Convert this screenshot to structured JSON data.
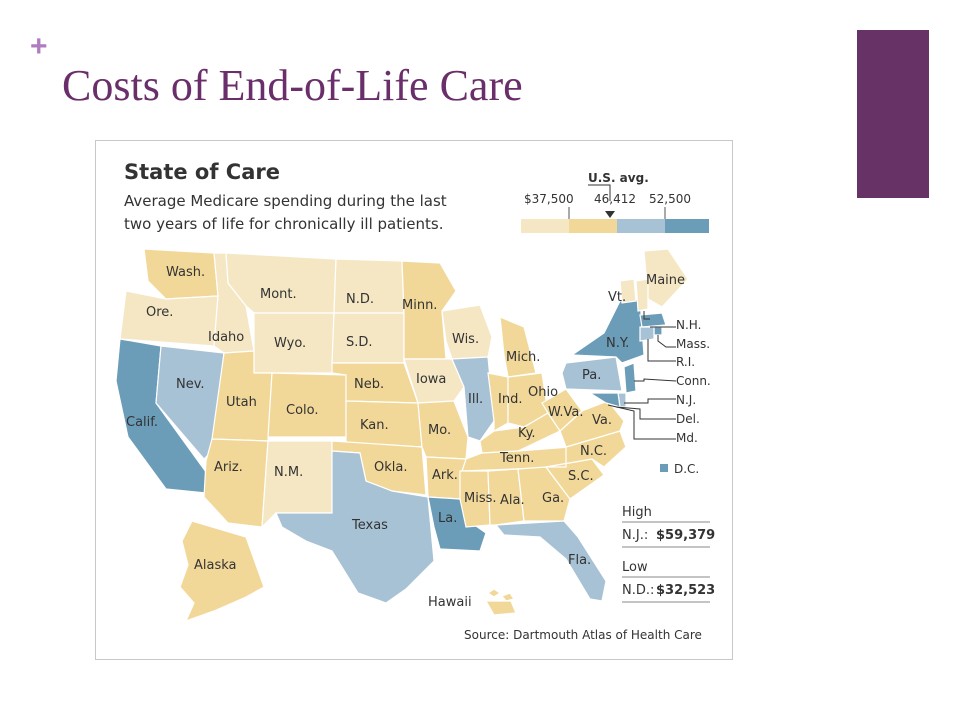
{
  "slide": {
    "plus": "+",
    "title": "Costs of End-of-Life Care"
  },
  "map": {
    "title": "State of Care",
    "subtitle_line1": "Average Medicare spending during the last",
    "subtitle_line2": "two years of life for chronically ill patients.",
    "legend": {
      "avg_label": "U.S. avg.",
      "ticks": [
        "$37,500",
        "46,412",
        "52,500"
      ],
      "colors": [
        "#f5e7c4",
        "#f2d898",
        "#a7c1d5",
        "#6b9db9"
      ]
    },
    "states": {
      "wa": "Wash.",
      "or": "Ore.",
      "ca": "Calif.",
      "nv": "Nev.",
      "id": "Idaho",
      "mt": "Mont.",
      "wy": "Wyo.",
      "ut": "Utah",
      "co": "Colo.",
      "az": "Ariz.",
      "nm": "N.M.",
      "nd": "N.D.",
      "sd": "S.D.",
      "ne": "Neb.",
      "ks": "Kan.",
      "ok": "Okla.",
      "tx": "Texas",
      "mn": "Minn.",
      "ia": "Iowa",
      "mo": "Mo.",
      "ar": "Ark.",
      "la": "La.",
      "wi": "Wis.",
      "il": "Ill.",
      "mi": "Mich.",
      "in": "Ind.",
      "oh": "Ohio",
      "ky": "Ky.",
      "tn": "Tenn.",
      "ms": "Miss.",
      "al": "Ala.",
      "ga": "Ga.",
      "fl": "Fla.",
      "sc": "S.C.",
      "nc": "N.C.",
      "va": "Va.",
      "wv": "W.Va.",
      "pa": "Pa.",
      "ny": "N.Y.",
      "vt": "Vt.",
      "me": "Maine",
      "nh": "N.H.",
      "ma": "Mass.",
      "ri": "R.I.",
      "ct": "Conn.",
      "nj": "N.J.",
      "de": "Del.",
      "md": "Md.",
      "dc": "D.C.",
      "ak": "Alaska",
      "hi": "Hawaii"
    },
    "high": {
      "label": "High",
      "state": "N.J.:",
      "value": "$59,379"
    },
    "low": {
      "label": "Low",
      "state": "N.D.:",
      "value": "$32,523"
    },
    "source": "Source: Dartmouth Atlas of Health Care"
  }
}
